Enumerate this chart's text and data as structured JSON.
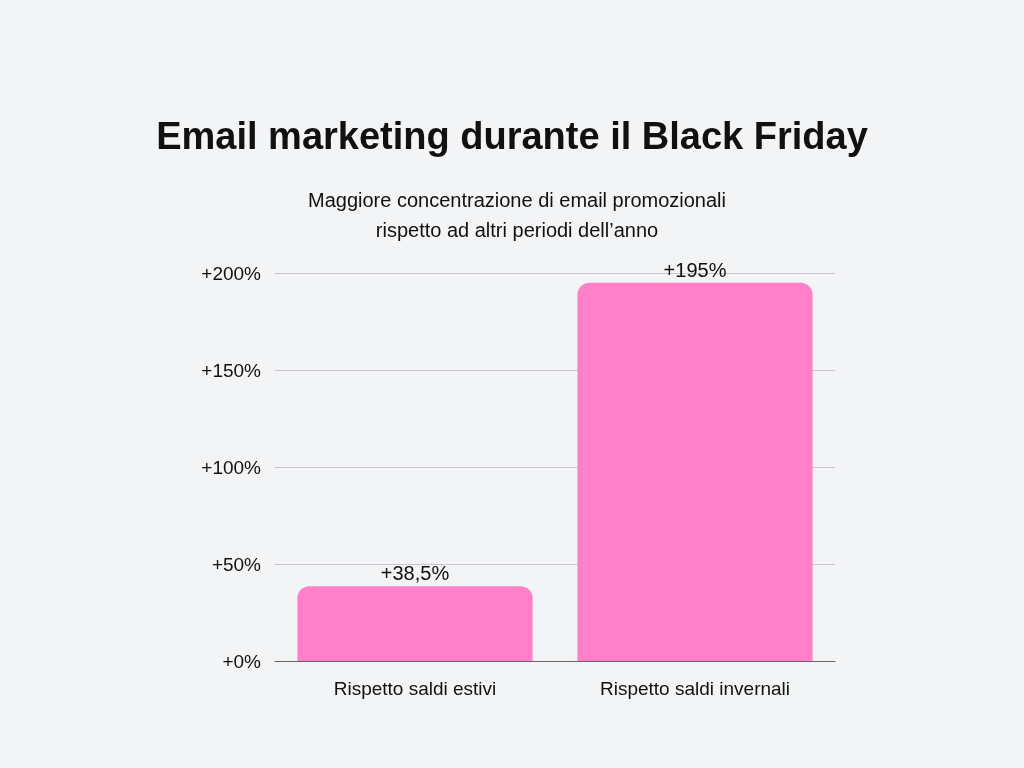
{
  "chart_data": {
    "type": "bar",
    "title": "Email marketing durante il Black Friday",
    "subtitle": "Maggiore concentrazione di email promozionali\nrispetto ad altri periodi dell’anno",
    "categories": [
      "Rispetto saldi estivi",
      "Rispetto saldi invernali"
    ],
    "values": [
      38.5,
      195
    ],
    "value_labels": [
      "+38,5%",
      "+195%"
    ],
    "color": "#ff80c8",
    "ylim": [
      0,
      200
    ],
    "yticks": [
      {
        "value": 0,
        "label": "+0%"
      },
      {
        "value": 50,
        "label": "+50%"
      },
      {
        "value": 100,
        "label": "+100%"
      },
      {
        "value": 150,
        "label": "+150%"
      },
      {
        "value": 200,
        "label": "+200%"
      }
    ],
    "grid": "y"
  }
}
